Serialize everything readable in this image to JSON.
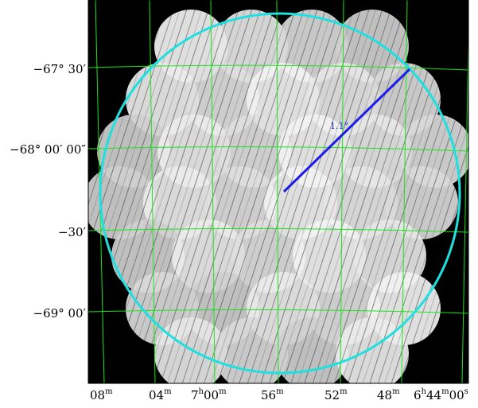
{
  "figure": {
    "kind": "sky-image",
    "background_color": "#000000",
    "grid_color": "#19e619",
    "footprint_circle_color": "#1ee0e0",
    "radius_line_color": "#1a1ee8",
    "radius_label": "1.1°"
  },
  "y_tick_labels": [
    {
      "main": "−67° 30′"
    },
    {
      "main": "−68° 00′ 00″"
    },
    {
      "main": "−30′"
    },
    {
      "main": "−69° 00′"
    }
  ],
  "x_tick_labels": [
    {
      "base": "08",
      "sup": "m"
    },
    {
      "base": "04",
      "sup": "m"
    },
    {
      "base": "7",
      "sup": "h",
      "base2": "00",
      "sup2": "m"
    },
    {
      "base": "56",
      "sup": "m"
    },
    {
      "base": "52",
      "sup": "m"
    },
    {
      "base": "48",
      "sup": "m"
    },
    {
      "base": "6",
      "sup": "h",
      "base2": "44",
      "sup2": "m",
      "base3": "00",
      "sup3": "s"
    }
  ]
}
